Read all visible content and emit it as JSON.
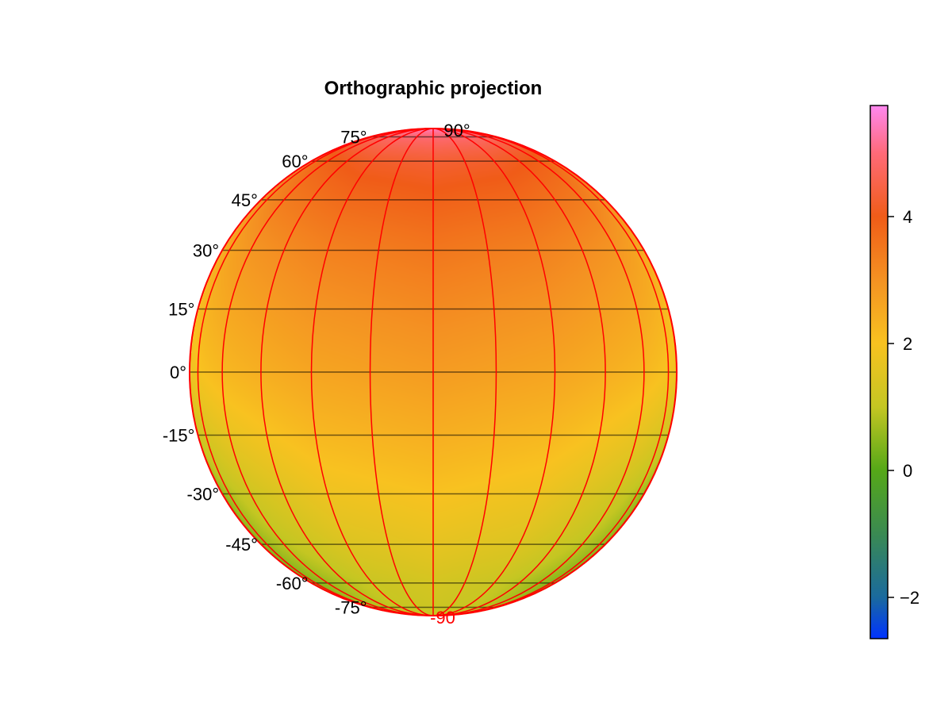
{
  "chart_data": {
    "type": "heatmap",
    "projection": "orthographic",
    "title": "Orthographic projection",
    "lat_ticks": [
      -90,
      -75,
      -60,
      -45,
      -30,
      -15,
      0,
      15,
      30,
      45,
      60,
      75,
      90
    ],
    "lat_tick_labels": [
      "-90",
      "-75°",
      "-60°",
      "-45°",
      "-30°",
      "-15°",
      "0°",
      "15°",
      "30°",
      "45°",
      "60°",
      "75°",
      "90°"
    ],
    "lon_gridlines": [
      -90,
      -75,
      -60,
      -45,
      -30,
      -15,
      0,
      15,
      30,
      45,
      60,
      75,
      90
    ],
    "grid_lat": [
      -90,
      -60,
      -30,
      0,
      30,
      60,
      90
    ],
    "grid_lon": [
      -90,
      -60,
      -30,
      0,
      30,
      60,
      90
    ],
    "values": [
      [
        1.0,
        1.0,
        1.0,
        1.0,
        1.0,
        1.0,
        1.0
      ],
      [
        0.2,
        0.6,
        1.1,
        1.3,
        1.1,
        0.6,
        0.2
      ],
      [
        0.4,
        1.2,
        1.8,
        2.0,
        1.8,
        1.2,
        0.4
      ],
      [
        1.7,
        2.2,
        2.6,
        2.8,
        2.6,
        2.2,
        1.7
      ],
      [
        2.3,
        2.9,
        3.3,
        3.5,
        3.3,
        2.9,
        2.3
      ],
      [
        3.4,
        3.9,
        4.2,
        4.3,
        4.2,
        3.9,
        3.4
      ],
      [
        5.6,
        5.6,
        5.6,
        5.6,
        5.6,
        5.6,
        5.6
      ]
    ],
    "colorbar": {
      "range": [
        -2.65,
        5.75
      ],
      "ticks": [
        -2,
        0,
        2,
        4
      ],
      "tick_labels": [
        "−2",
        "0",
        "2",
        "4"
      ],
      "colormap_stops": [
        [
          -2.65,
          "#0033ff"
        ],
        [
          -2.0,
          "#1a6a9e"
        ],
        [
          -1.0,
          "#3a8a52"
        ],
        [
          0.0,
          "#55a818"
        ],
        [
          1.0,
          "#c4c622"
        ],
        [
          2.0,
          "#f8c220"
        ],
        [
          3.0,
          "#f49222"
        ],
        [
          4.0,
          "#f05c18"
        ],
        [
          5.0,
          "#ff6a78"
        ],
        [
          5.75,
          "#ff88f0"
        ]
      ]
    },
    "meridian_color": "#ff0000",
    "parallel_color": "#000000",
    "outline_color": "#ff0000"
  }
}
